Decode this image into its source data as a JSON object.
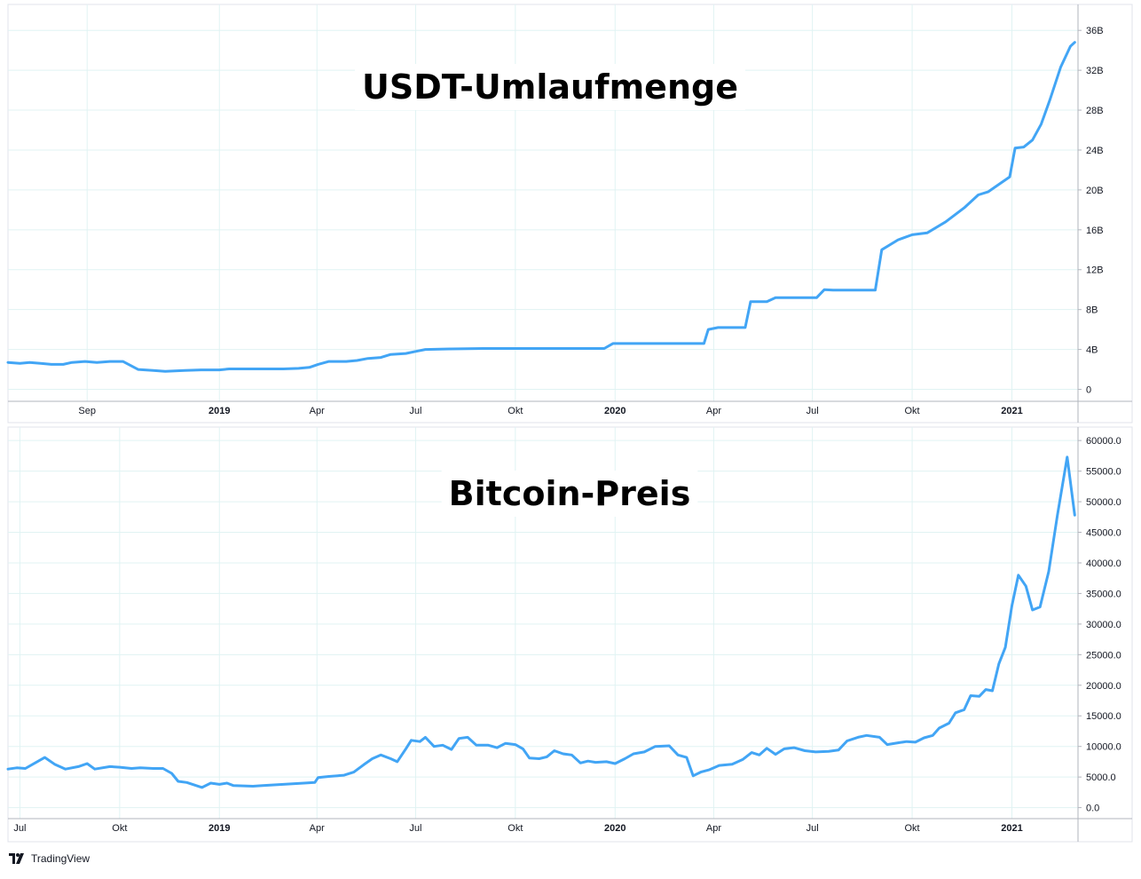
{
  "colors": {
    "line": "#42a5f5",
    "grid": "#e0f3f3",
    "axis_text": "#131722",
    "border": "#b2b5be"
  },
  "brand": {
    "name": "TradingView",
    "logo_icon": "tradingview-logo-icon"
  },
  "chart_data": [
    {
      "type": "line",
      "title": "USDT-Umlaufmenge",
      "xlabel": "",
      "ylabel": "",
      "y_ticks": [
        "0",
        "4B",
        "8B",
        "12B",
        "16B",
        "20B",
        "24B",
        "28B",
        "32B",
        "36B"
      ],
      "ylim": [
        -1.2,
        38.6
      ],
      "y_unit": "B",
      "x_range": [
        "2018-06-20",
        "2021-03-03"
      ],
      "x_ticks": [
        {
          "date": "2018-09-01",
          "label": "Sep",
          "bold": false
        },
        {
          "date": "2019-01-01",
          "label": "2019",
          "bold": true
        },
        {
          "date": "2019-04-01",
          "label": "Apr",
          "bold": false
        },
        {
          "date": "2019-07-01",
          "label": "Jul",
          "bold": false
        },
        {
          "date": "2019-10-01",
          "label": "Okt",
          "bold": false
        },
        {
          "date": "2020-01-01",
          "label": "2020",
          "bold": true
        },
        {
          "date": "2020-04-01",
          "label": "Apr",
          "bold": false
        },
        {
          "date": "2020-07-01",
          "label": "Jul",
          "bold": false
        },
        {
          "date": "2020-10-01",
          "label": "Okt",
          "bold": false
        },
        {
          "date": "2021-01-01",
          "label": "2021",
          "bold": true
        }
      ],
      "grid": true,
      "series": [
        {
          "points": [
            [
              "2018-06-20",
              2.7
            ],
            [
              "2018-07-01",
              2.6
            ],
            [
              "2018-07-10",
              2.7
            ],
            [
              "2018-07-20",
              2.6
            ],
            [
              "2018-07-30",
              2.5
            ],
            [
              "2018-08-10",
              2.5
            ],
            [
              "2018-08-18",
              2.7
            ],
            [
              "2018-08-30",
              2.8
            ],
            [
              "2018-09-10",
              2.7
            ],
            [
              "2018-09-22",
              2.8
            ],
            [
              "2018-10-04",
              2.8
            ],
            [
              "2018-10-18",
              2.0
            ],
            [
              "2018-11-01",
              1.9
            ],
            [
              "2018-11-12",
              1.8
            ],
            [
              "2018-11-30",
              1.9
            ],
            [
              "2018-12-15",
              1.95
            ],
            [
              "2019-01-01",
              1.95
            ],
            [
              "2019-01-10",
              2.05
            ],
            [
              "2019-02-01",
              2.05
            ],
            [
              "2019-03-01",
              2.05
            ],
            [
              "2019-03-15",
              2.1
            ],
            [
              "2019-03-25",
              2.2
            ],
            [
              "2019-04-02",
              2.5
            ],
            [
              "2019-04-12",
              2.8
            ],
            [
              "2019-04-28",
              2.8
            ],
            [
              "2019-05-08",
              2.9
            ],
            [
              "2019-05-18",
              3.1
            ],
            [
              "2019-05-30",
              3.2
            ],
            [
              "2019-06-08",
              3.5
            ],
            [
              "2019-06-22",
              3.6
            ],
            [
              "2019-07-01",
              3.8
            ],
            [
              "2019-07-10",
              4.0
            ],
            [
              "2019-08-01",
              4.05
            ],
            [
              "2019-09-01",
              4.1
            ],
            [
              "2019-10-01",
              4.1
            ],
            [
              "2019-11-01",
              4.1
            ],
            [
              "2019-12-01",
              4.1
            ],
            [
              "2019-12-22",
              4.1
            ],
            [
              "2019-12-30",
              4.6
            ],
            [
              "2020-01-10",
              4.6
            ],
            [
              "2020-02-01",
              4.6
            ],
            [
              "2020-03-01",
              4.6
            ],
            [
              "2020-03-23",
              4.6
            ],
            [
              "2020-03-27",
              6.0
            ],
            [
              "2020-04-05",
              6.2
            ],
            [
              "2020-04-30",
              6.2
            ],
            [
              "2020-05-05",
              8.8
            ],
            [
              "2020-05-20",
              8.8
            ],
            [
              "2020-05-28",
              9.2
            ],
            [
              "2020-06-30",
              9.2
            ],
            [
              "2020-07-05",
              9.2
            ],
            [
              "2020-07-12",
              10.0
            ],
            [
              "2020-07-20",
              9.95
            ],
            [
              "2020-08-28",
              9.95
            ],
            [
              "2020-09-03",
              14.0
            ],
            [
              "2020-09-18",
              15.0
            ],
            [
              "2020-10-01",
              15.5
            ],
            [
              "2020-10-15",
              15.7
            ],
            [
              "2020-11-01",
              16.8
            ],
            [
              "2020-11-18",
              18.2
            ],
            [
              "2020-12-01",
              19.5
            ],
            [
              "2020-12-10",
              19.8
            ],
            [
              "2020-12-22",
              20.7
            ],
            [
              "2020-12-30",
              21.3
            ],
            [
              "2021-01-04",
              24.2
            ],
            [
              "2021-01-12",
              24.3
            ],
            [
              "2021-01-20",
              25.0
            ],
            [
              "2021-01-28",
              26.6
            ],
            [
              "2021-02-05",
              29.0
            ],
            [
              "2021-02-15",
              32.3
            ],
            [
              "2021-02-24",
              34.4
            ],
            [
              "2021-02-28",
              34.8
            ]
          ]
        }
      ]
    },
    {
      "type": "line",
      "title": "Bitcoin-Preis",
      "xlabel": "",
      "ylabel": "",
      "y_ticks": [
        "0.0",
        "5000.0",
        "10000.0",
        "15000.0",
        "20000.0",
        "25000.0",
        "30000.0",
        "35000.0",
        "40000.0",
        "45000.0",
        "50000.0",
        "55000.0",
        "60000.0"
      ],
      "ylim": [
        -1800,
        62200
      ],
      "x_range": [
        "2018-06-20",
        "2021-03-03"
      ],
      "x_ticks": [
        {
          "date": "2018-07-01",
          "label": "Jul",
          "bold": false
        },
        {
          "date": "2018-10-01",
          "label": "Okt",
          "bold": false
        },
        {
          "date": "2019-01-01",
          "label": "2019",
          "bold": true
        },
        {
          "date": "2019-04-01",
          "label": "Apr",
          "bold": false
        },
        {
          "date": "2019-07-01",
          "label": "Jul",
          "bold": false
        },
        {
          "date": "2019-10-01",
          "label": "Okt",
          "bold": false
        },
        {
          "date": "2020-01-01",
          "label": "2020",
          "bold": true
        },
        {
          "date": "2020-04-01",
          "label": "Apr",
          "bold": false
        },
        {
          "date": "2020-07-01",
          "label": "Jul",
          "bold": false
        },
        {
          "date": "2020-10-01",
          "label": "Okt",
          "bold": false
        },
        {
          "date": "2021-01-01",
          "label": "2021",
          "bold": true
        }
      ],
      "grid": true,
      "series": [
        {
          "points": [
            [
              "2018-06-20",
              6300
            ],
            [
              "2018-06-28",
              6500
            ],
            [
              "2018-07-06",
              6400
            ],
            [
              "2018-07-16",
              7400
            ],
            [
              "2018-07-24",
              8200
            ],
            [
              "2018-08-02",
              7100
            ],
            [
              "2018-08-12",
              6300
            ],
            [
              "2018-08-24",
              6700
            ],
            [
              "2018-09-01",
              7200
            ],
            [
              "2018-09-08",
              6300
            ],
            [
              "2018-09-22",
              6700
            ],
            [
              "2018-10-01",
              6600
            ],
            [
              "2018-10-12",
              6400
            ],
            [
              "2018-10-20",
              6500
            ],
            [
              "2018-11-01",
              6400
            ],
            [
              "2018-11-10",
              6400
            ],
            [
              "2018-11-18",
              5600
            ],
            [
              "2018-11-24",
              4300
            ],
            [
              "2018-12-02",
              4100
            ],
            [
              "2018-12-16",
              3300
            ],
            [
              "2018-12-24",
              4000
            ],
            [
              "2019-01-01",
              3800
            ],
            [
              "2019-01-08",
              4000
            ],
            [
              "2019-01-14",
              3600
            ],
            [
              "2019-02-01",
              3500
            ],
            [
              "2019-02-10",
              3600
            ],
            [
              "2019-03-01",
              3800
            ],
            [
              "2019-03-20",
              4000
            ],
            [
              "2019-03-30",
              4100
            ],
            [
              "2019-04-02",
              4900
            ],
            [
              "2019-04-12",
              5100
            ],
            [
              "2019-04-26",
              5300
            ],
            [
              "2019-05-05",
              5800
            ],
            [
              "2019-05-14",
              7000
            ],
            [
              "2019-05-22",
              8000
            ],
            [
              "2019-05-30",
              8600
            ],
            [
              "2019-06-08",
              8000
            ],
            [
              "2019-06-14",
              7500
            ],
            [
              "2019-06-22",
              9600
            ],
            [
              "2019-06-27",
              11000
            ],
            [
              "2019-07-05",
              10800
            ],
            [
              "2019-07-10",
              11500
            ],
            [
              "2019-07-18",
              10000
            ],
            [
              "2019-07-26",
              10200
            ],
            [
              "2019-08-03",
              9500
            ],
            [
              "2019-08-10",
              11300
            ],
            [
              "2019-08-18",
              11500
            ],
            [
              "2019-08-26",
              10200
            ],
            [
              "2019-09-06",
              10200
            ],
            [
              "2019-09-14",
              9800
            ],
            [
              "2019-09-22",
              10500
            ],
            [
              "2019-10-01",
              10300
            ],
            [
              "2019-10-08",
              9600
            ],
            [
              "2019-10-14",
              8100
            ],
            [
              "2019-10-23",
              8000
            ],
            [
              "2019-10-30",
              8300
            ],
            [
              "2019-11-06",
              9300
            ],
            [
              "2019-11-14",
              8800
            ],
            [
              "2019-11-22",
              8600
            ],
            [
              "2019-11-30",
              7300
            ],
            [
              "2019-12-07",
              7600
            ],
            [
              "2019-12-14",
              7400
            ],
            [
              "2019-12-24",
              7500
            ],
            [
              "2020-01-01",
              7200
            ],
            [
              "2020-01-10",
              8000
            ],
            [
              "2020-01-18",
              8800
            ],
            [
              "2020-01-28",
              9100
            ],
            [
              "2020-02-07",
              10000
            ],
            [
              "2020-02-20",
              10100
            ],
            [
              "2020-02-28",
              8600
            ],
            [
              "2020-03-07",
              8200
            ],
            [
              "2020-03-13",
              5200
            ],
            [
              "2020-03-20",
              5800
            ],
            [
              "2020-03-28",
              6200
            ],
            [
              "2020-04-06",
              6900
            ],
            [
              "2020-04-18",
              7100
            ],
            [
              "2020-04-28",
              7900
            ],
            [
              "2020-05-06",
              9000
            ],
            [
              "2020-05-13",
              8600
            ],
            [
              "2020-05-20",
              9700
            ],
            [
              "2020-05-28",
              8700
            ],
            [
              "2020-06-05",
              9600
            ],
            [
              "2020-06-14",
              9800
            ],
            [
              "2020-06-24",
              9300
            ],
            [
              "2020-07-04",
              9100
            ],
            [
              "2020-07-16",
              9200
            ],
            [
              "2020-07-25",
              9400
            ],
            [
              "2020-08-02",
              10900
            ],
            [
              "2020-08-12",
              11500
            ],
            [
              "2020-08-20",
              11800
            ],
            [
              "2020-09-01",
              11500
            ],
            [
              "2020-09-08",
              10300
            ],
            [
              "2020-09-18",
              10600
            ],
            [
              "2020-09-26",
              10800
            ],
            [
              "2020-10-04",
              10700
            ],
            [
              "2020-10-12",
              11400
            ],
            [
              "2020-10-20",
              11800
            ],
            [
              "2020-10-26",
              13000
            ],
            [
              "2020-11-04",
              13800
            ],
            [
              "2020-11-10",
              15500
            ],
            [
              "2020-11-18",
              16000
            ],
            [
              "2020-11-24",
              18300
            ],
            [
              "2020-12-02",
              18200
            ],
            [
              "2020-12-08",
              19300
            ],
            [
              "2020-12-14",
              19100
            ],
            [
              "2020-12-20",
              23500
            ],
            [
              "2020-12-26",
              26200
            ],
            [
              "2021-01-01",
              33000
            ],
            [
              "2021-01-07",
              38000
            ],
            [
              "2021-01-14",
              36200
            ],
            [
              "2021-01-20",
              32300
            ],
            [
              "2021-01-27",
              32800
            ],
            [
              "2021-02-04",
              38600
            ],
            [
              "2021-02-12",
              47800
            ],
            [
              "2021-02-21",
              57300
            ],
            [
              "2021-02-28",
              47800
            ]
          ]
        }
      ]
    }
  ]
}
